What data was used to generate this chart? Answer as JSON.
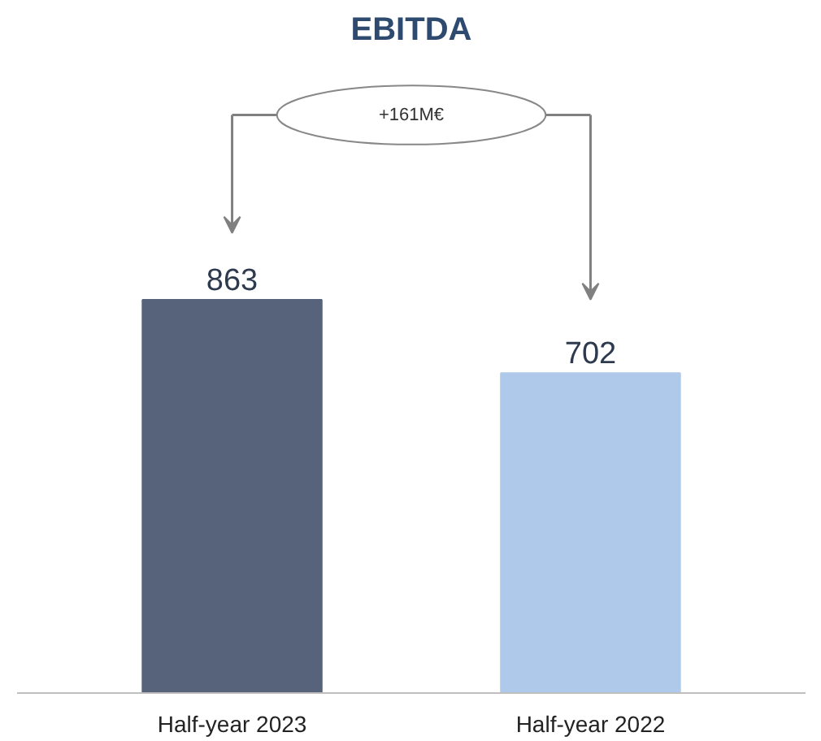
{
  "chart_data": {
    "type": "bar",
    "title": "EBITDA",
    "categories": [
      "Half-year 2023",
      "Half-year 2022"
    ],
    "values": [
      863,
      702
    ],
    "colors": [
      "#56637a",
      "#aec9ea"
    ],
    "data_labels": true,
    "annotations": [
      "+161M€"
    ]
  }
}
